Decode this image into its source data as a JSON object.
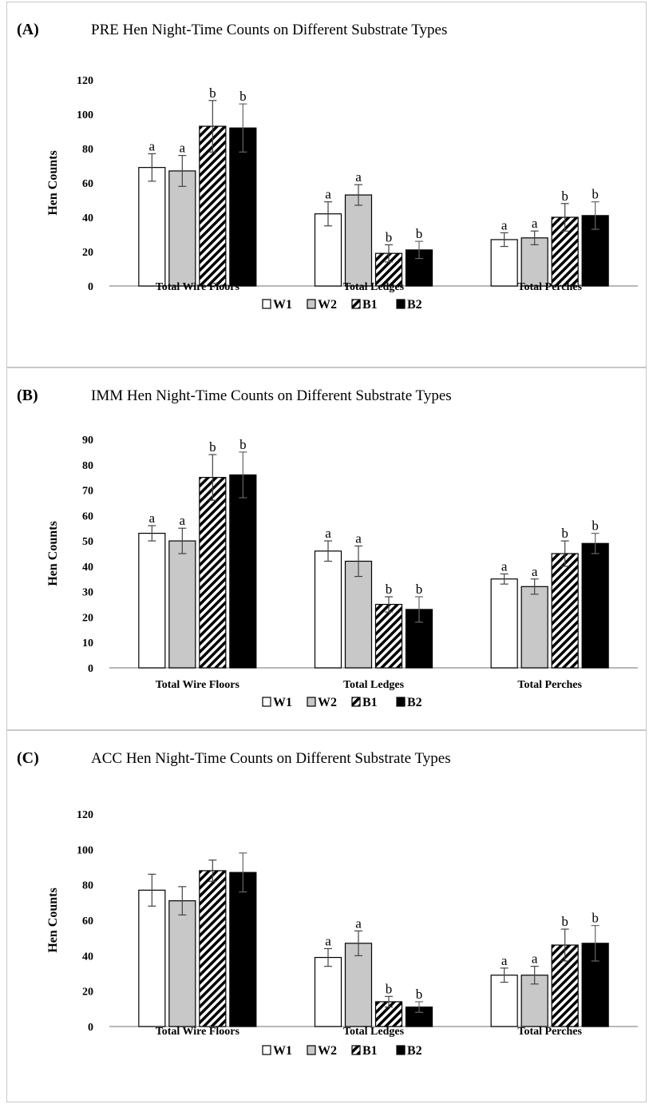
{
  "legend": [
    {
      "name": "W1",
      "fill": "white"
    },
    {
      "name": "W2",
      "fill": "gray"
    },
    {
      "name": "B1",
      "fill": "hatch"
    },
    {
      "name": "B2",
      "fill": "black"
    }
  ],
  "colors": {
    "gray": "#c8c8c8",
    "black": "#000000",
    "white": "#ffffff",
    "axis": "#a0a0a0"
  },
  "chart_data": [
    {
      "type": "bar",
      "panel_label": "(A)",
      "title": "PRE Hen Night-Time Counts on Different Substrate Types",
      "ylabel": "Hen Counts",
      "ylim": [
        0,
        120
      ],
      "yticks": [
        "0",
        "20",
        "40",
        "60",
        "80",
        "100",
        "120"
      ],
      "categories": [
        "Total Wire Floors",
        "Total Ledges",
        "Total Perches"
      ],
      "series": [
        {
          "name": "W1",
          "values": [
            69,
            42,
            27
          ],
          "errors": [
            8,
            7,
            4
          ],
          "letters": [
            "a",
            "a",
            "a"
          ]
        },
        {
          "name": "W2",
          "values": [
            67,
            53,
            28
          ],
          "errors": [
            9,
            6,
            4
          ],
          "letters": [
            "a",
            "a",
            "a"
          ]
        },
        {
          "name": "B1",
          "values": [
            93,
            19,
            40
          ],
          "errors": [
            15,
            5,
            8
          ],
          "letters": [
            "b",
            "b",
            "b"
          ]
        },
        {
          "name": "B2",
          "values": [
            92,
            21,
            41
          ],
          "errors": [
            14,
            5,
            8
          ],
          "letters": [
            "b",
            "b",
            "b"
          ]
        }
      ]
    },
    {
      "type": "bar",
      "panel_label": "(B)",
      "title": "IMM Hen Night-Time Counts on Different Substrate Types",
      "ylabel": "Hen Counts",
      "ylim": [
        0,
        90
      ],
      "yticks": [
        "0",
        "10",
        "20",
        "30",
        "40",
        "50",
        "60",
        "70",
        "80",
        "90"
      ],
      "categories": [
        "Total Wire Floors",
        "Total Ledges",
        "Total Perches"
      ],
      "series": [
        {
          "name": "W1",
          "values": [
            53,
            46,
            35
          ],
          "errors": [
            3,
            4,
            2
          ],
          "letters": [
            "a",
            "a",
            "a"
          ]
        },
        {
          "name": "W2",
          "values": [
            50,
            42,
            32
          ],
          "errors": [
            5,
            6,
            3
          ],
          "letters": [
            "a",
            "a",
            "a"
          ]
        },
        {
          "name": "B1",
          "values": [
            75,
            25,
            45
          ],
          "errors": [
            9,
            3,
            5
          ],
          "letters": [
            "b",
            "b",
            "b"
          ]
        },
        {
          "name": "B2",
          "values": [
            76,
            23,
            49
          ],
          "errors": [
            9,
            5,
            4
          ],
          "letters": [
            "b",
            "b",
            "b"
          ]
        }
      ]
    },
    {
      "type": "bar",
      "panel_label": "(C)",
      "title": "ACC Hen Night-Time Counts on Different Substrate Types",
      "ylabel": "Hen Counts",
      "ylim": [
        0,
        120
      ],
      "yticks": [
        "0",
        "20",
        "40",
        "60",
        "80",
        "100",
        "120"
      ],
      "categories": [
        "Total Wire Floors",
        "Total Ledges",
        "Total Perches"
      ],
      "series": [
        {
          "name": "W1",
          "values": [
            77,
            39,
            29
          ],
          "errors": [
            9,
            5,
            4
          ],
          "letters": [
            "",
            "a",
            "a"
          ]
        },
        {
          "name": "W2",
          "values": [
            71,
            47,
            29
          ],
          "errors": [
            8,
            7,
            5
          ],
          "letters": [
            "",
            "a",
            "a"
          ]
        },
        {
          "name": "B1",
          "values": [
            88,
            14,
            46
          ],
          "errors": [
            6,
            3,
            9
          ],
          "letters": [
            "",
            "b",
            "b"
          ]
        },
        {
          "name": "B2",
          "values": [
            87,
            11,
            47
          ],
          "errors": [
            11,
            3,
            10
          ],
          "letters": [
            "",
            "b",
            "b"
          ]
        }
      ]
    }
  ]
}
